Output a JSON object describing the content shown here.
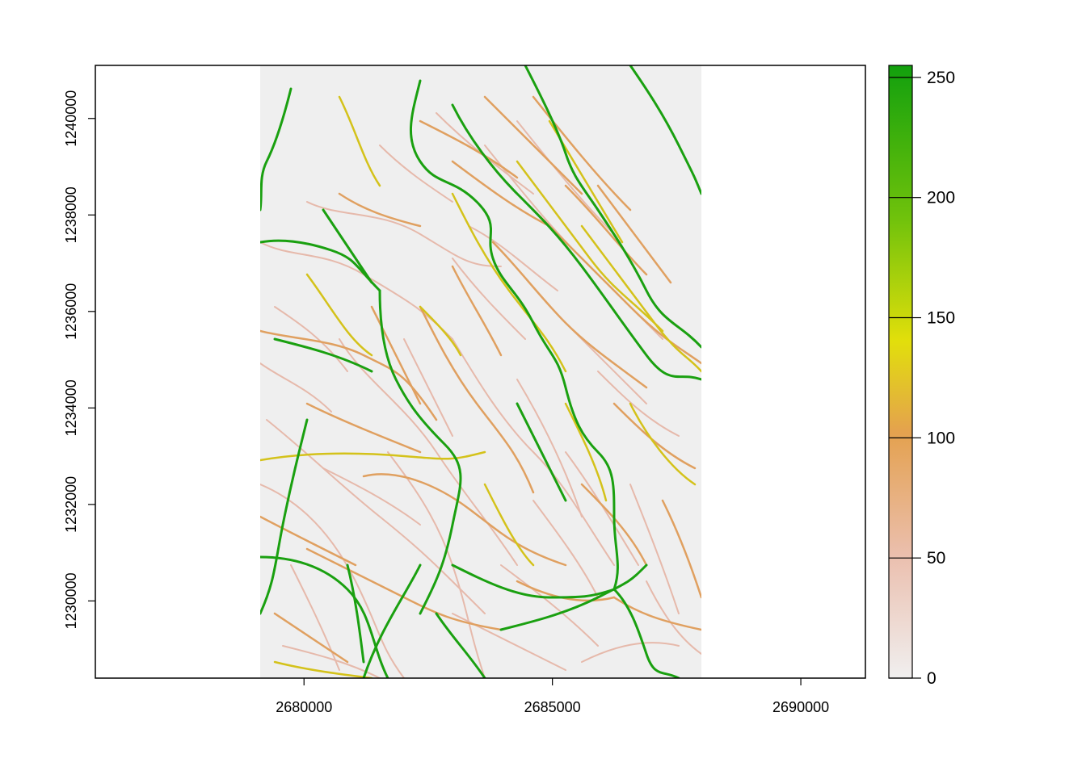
{
  "chart_data": {
    "type": "heatmap",
    "title": "",
    "xlabel": "",
    "ylabel": "",
    "x_ticks": [
      "2680000",
      "2685000",
      "2690000"
    ],
    "y_ticks": [
      "1230000",
      "1232000",
      "1234000",
      "1236000",
      "1238000",
      "1240000"
    ],
    "xlim": [
      2675800,
      2691300
    ],
    "ylim": [
      1228400,
      1241100
    ],
    "raster_extent": {
      "xmin": 2679000,
      "xmax": 2688000,
      "ymin": 1228400,
      "ymax": 1241100
    },
    "legend": {
      "ticks": [
        "0",
        "50",
        "100",
        "150",
        "200",
        "250"
      ],
      "range": [
        0,
        255
      ],
      "colors": [
        "#f0efef",
        "#ebbfae",
        "#e4a14f",
        "#e2df0b",
        "#70c20c",
        "#12a00d"
      ]
    },
    "background_color": "#efefef"
  }
}
